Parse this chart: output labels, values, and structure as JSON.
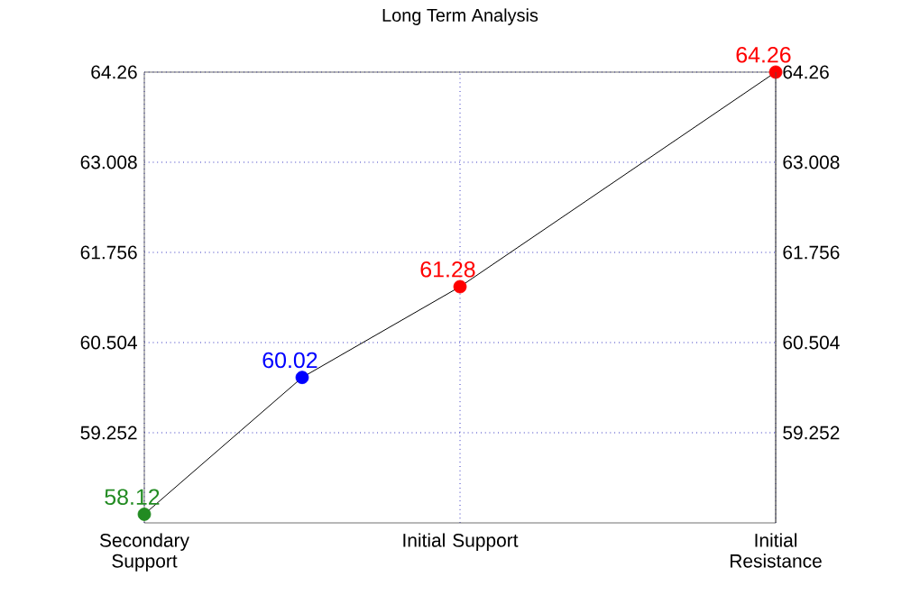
{
  "chart_data": {
    "type": "line",
    "title": "Long Term Analysis",
    "categories": [
      "Secondary Support",
      null,
      "Initial Support",
      null,
      "Initial Resistance"
    ],
    "ylim": [
      58,
      64.26
    ],
    "yticks": [
      59.252,
      60.504,
      61.756,
      63.008,
      64.26
    ],
    "y2lim": [
      58,
      64.26
    ],
    "y2ticks": [
      59.252,
      60.504,
      61.756,
      63.008,
      64.26
    ],
    "grid": true,
    "marker": "circle",
    "line_style": "solid",
    "data_labels": true,
    "series": [
      {
        "color": "#000000",
        "colors": [
          "#228b22",
          "#0000ff",
          "#ff0000",
          null,
          "#ff0000"
        ],
        "values": [
          58.12,
          60.02,
          61.28,
          null,
          64.26
        ],
        "value_labels": [
          "58.12",
          "60.02",
          "61.28",
          null,
          "64.26"
        ]
      }
    ]
  }
}
